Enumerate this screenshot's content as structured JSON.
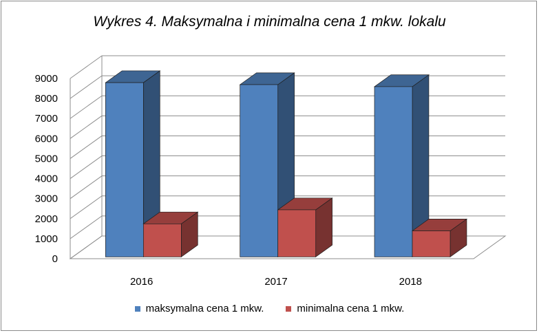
{
  "chart_data": {
    "type": "bar",
    "title": "Wykres 4. Maksymalna i minimalna cena 1 mkw. lokalu",
    "categories": [
      "2016",
      "2017",
      "2018"
    ],
    "series": [
      {
        "name": "maksymalna cena 1 mkw.",
        "color": "#4f81bd",
        "values": [
          8700,
          8600,
          8500
        ]
      },
      {
        "name": "minimalna cena 1 mkw.",
        "color": "#c0504d",
        "values": [
          1650,
          2350,
          1300
        ]
      }
    ],
    "ylim": [
      0,
      9000
    ],
    "yticks": [
      "0",
      "1000",
      "2000",
      "3000",
      "4000",
      "5000",
      "6000",
      "7000",
      "8000",
      "9000"
    ],
    "grid": true,
    "legend": "bottom"
  }
}
